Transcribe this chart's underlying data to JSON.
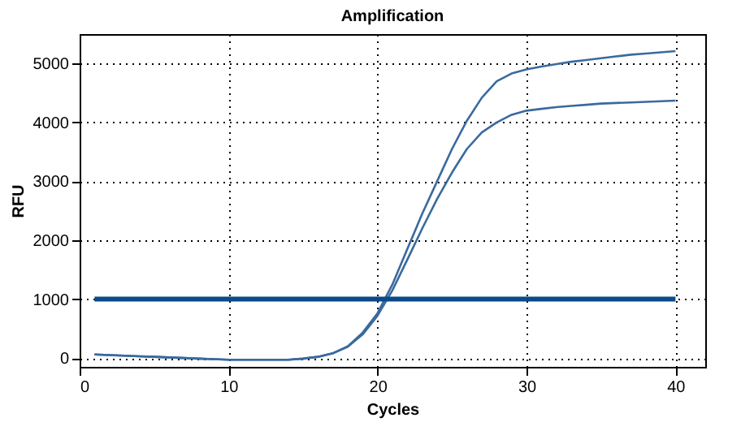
{
  "chart_data": {
    "type": "line",
    "title": "Amplification",
    "xlabel": "Cycles",
    "ylabel": "RFU",
    "x": [
      1,
      2,
      3,
      4,
      5,
      6,
      7,
      8,
      9,
      10,
      11,
      12,
      13,
      14,
      15,
      16,
      17,
      18,
      19,
      20,
      21,
      22,
      23,
      24,
      25,
      26,
      27,
      28,
      29,
      30,
      31,
      32,
      33,
      34,
      35,
      36,
      37,
      38,
      39,
      40
    ],
    "series": [
      {
        "color": "#3a6a9e",
        "values": [
          60,
          50,
          40,
          30,
          20,
          10,
          0,
          -10,
          -20,
          -30,
          -30,
          -30,
          -30,
          -30,
          -10,
          20,
          80,
          200,
          430,
          760,
          1250,
          1850,
          2450,
          3000,
          3550,
          4030,
          4420,
          4700,
          4830,
          4900,
          4950,
          4990,
          5030,
          5060,
          5090,
          5120,
          5150,
          5170,
          5190,
          5210
        ]
      },
      {
        "color": "#3a6a9e",
        "values": [
          60,
          50,
          40,
          30,
          20,
          10,
          0,
          -10,
          -20,
          -30,
          -30,
          -30,
          -30,
          -30,
          -10,
          20,
          80,
          190,
          400,
          720,
          1150,
          1670,
          2200,
          2700,
          3150,
          3550,
          3830,
          4000,
          4130,
          4200,
          4230,
          4260,
          4280,
          4300,
          4320,
          4330,
          4340,
          4350,
          4360,
          4370
        ]
      }
    ],
    "xlim": [
      0,
      42
    ],
    "xticks": [
      0,
      10,
      20,
      30,
      40
    ],
    "ylim": [
      -150,
      5500
    ],
    "yticks": [
      0,
      1000,
      2000,
      3000,
      4000,
      5000
    ],
    "ref_lines": [
      {
        "axis": "y",
        "value": 1000,
        "color": "#0b4a8a"
      }
    ],
    "grid": true,
    "marker": "none",
    "line_style": "solid"
  }
}
